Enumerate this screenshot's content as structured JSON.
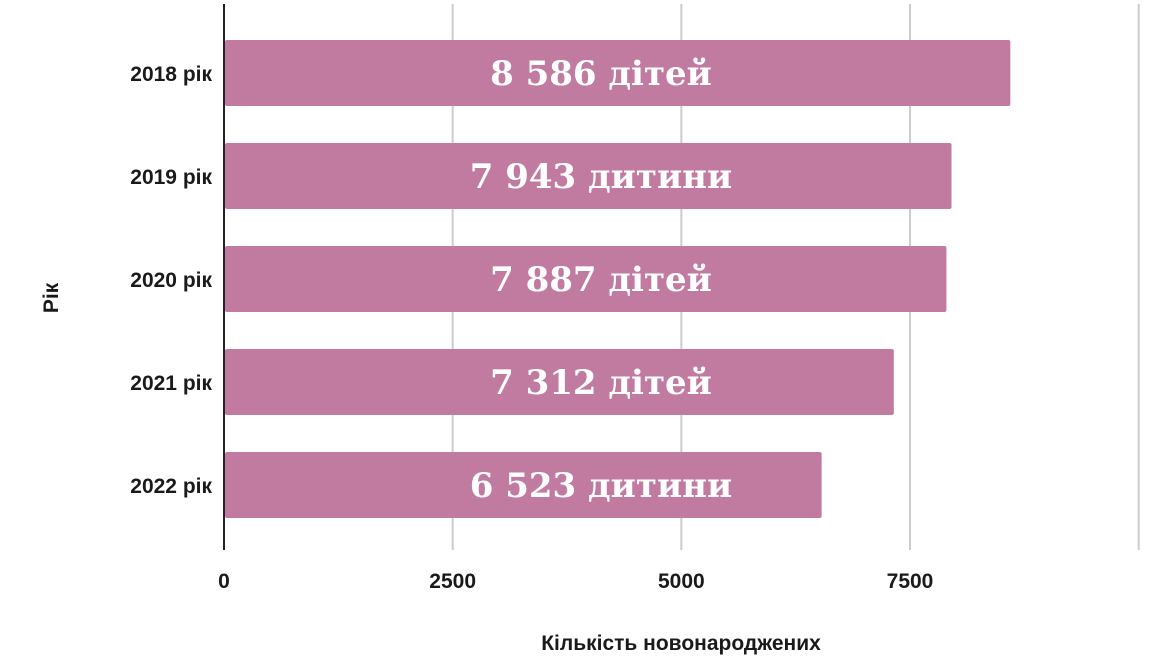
{
  "chart_data": {
    "type": "bar",
    "orientation": "horizontal",
    "title": "",
    "xlabel": "Кількість новонароджених",
    "ylabel": "Рік",
    "categories": [
      "2018 рік",
      "2019 рік",
      "2020 рік",
      "2021 рік",
      "2022 рік"
    ],
    "series": [
      {
        "values": [
          8586,
          7943,
          7887,
          7312,
          6523
        ],
        "data_labels": [
          "8 586 дітей",
          "7 943 дитини",
          "7 887 дітей",
          "7 312 дітей",
          "6 523 дитини"
        ],
        "color": "#c27ba0"
      }
    ],
    "xlim": [
      0,
      10000
    ],
    "xticks": [
      0,
      2500,
      5000,
      7500
    ],
    "grid": true,
    "legend": "none"
  }
}
